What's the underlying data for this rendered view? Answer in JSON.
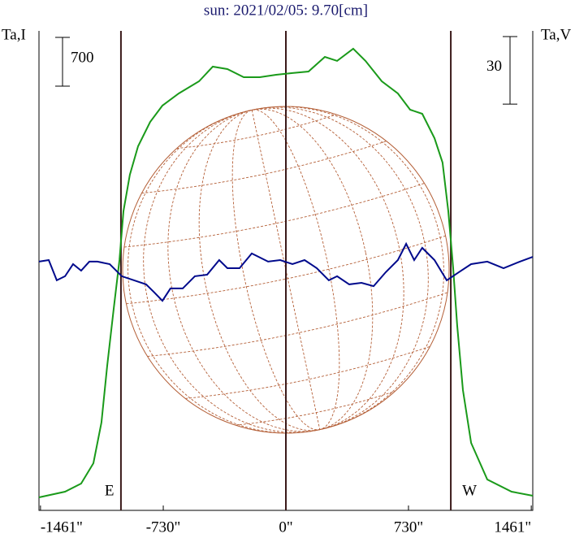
{
  "chart_data": {
    "type": "line",
    "title": "sun: 2021/02/05: 9.70[cm]",
    "ylabel": "Ta,I",
    "y2label": "Ta,V",
    "xlim": [
      -1470,
      1470
    ],
    "xticks": [
      {
        "value": -1461,
        "label": "-1461\""
      },
      {
        "value": -730,
        "label": "-730\""
      },
      {
        "value": 0,
        "label": "0\""
      },
      {
        "value": 730,
        "label": "730\""
      },
      {
        "value": 1461,
        "label": "1461\""
      }
    ],
    "ylim": [
      0,
      6885
    ],
    "y2lim": [
      -106.5,
      106.5
    ],
    "scale_bars": [
      {
        "value": 700,
        "axis": "y"
      },
      {
        "value": 30,
        "axis": "y2"
      }
    ],
    "markers": [
      {
        "x": -982,
        "label": "E"
      },
      {
        "x": 0
      },
      {
        "x": 982,
        "label": "W"
      }
    ],
    "series": [
      {
        "name": "Ta,I",
        "color": "#1a9a1a",
        "x": [
          -1470,
          -1315,
          -1219,
          -1146,
          -1098,
          -1064,
          -1025,
          -991,
          -967,
          -929,
          -880,
          -808,
          -735,
          -638,
          -517,
          -435,
          -348,
          -251,
          -155,
          -58,
          39,
          135,
          232,
          305,
          401,
          474,
          571,
          667,
          740,
          812,
          885,
          933,
          967,
          996,
          1020,
          1054,
          1103,
          1199,
          1344,
          1470
        ],
        "values": [
          187,
          268,
          385,
          677,
          1260,
          2077,
          2894,
          3594,
          4295,
          4820,
          5228,
          5578,
          5812,
          5987,
          6162,
          6372,
          6337,
          6220,
          6220,
          6255,
          6279,
          6302,
          6512,
          6454,
          6629,
          6454,
          6162,
          5987,
          5753,
          5695,
          5345,
          4995,
          4295,
          3478,
          2661,
          1727,
          969,
          443,
          268,
          210
        ]
      },
      {
        "name": "Ta,V",
        "color": "#000a8c",
        "axis": "y2",
        "x": [
          -1470,
          -1412,
          -1364,
          -1315,
          -1267,
          -1219,
          -1170,
          -1122,
          -1049,
          -977,
          -904,
          -832,
          -783,
          -735,
          -687,
          -614,
          -542,
          -469,
          -397,
          -348,
          -276,
          -203,
          -106,
          -34,
          39,
          111,
          184,
          256,
          305,
          377,
          450,
          522,
          595,
          667,
          716,
          764,
          812,
          885,
          958,
          1030,
          1103,
          1199,
          1296,
          1393,
          1470
        ],
        "values": [
          4.0,
          4.7,
          -4.3,
          -2.5,
          2.9,
          0,
          4.0,
          4.0,
          2.9,
          -2.5,
          -4.3,
          -6.1,
          -9.7,
          -13.4,
          -7.9,
          -7.9,
          -2.5,
          -1.8,
          4.7,
          1.1,
          1.1,
          7.6,
          4.0,
          4.7,
          2.9,
          4.7,
          1.1,
          -4.3,
          -2.5,
          -6.1,
          -5.4,
          -6.9,
          -0.7,
          4.7,
          11.9,
          4.7,
          10.1,
          4.7,
          -4.3,
          -0.7,
          2.9,
          4.0,
          1.1,
          4.0,
          6.1
        ]
      }
    ]
  }
}
